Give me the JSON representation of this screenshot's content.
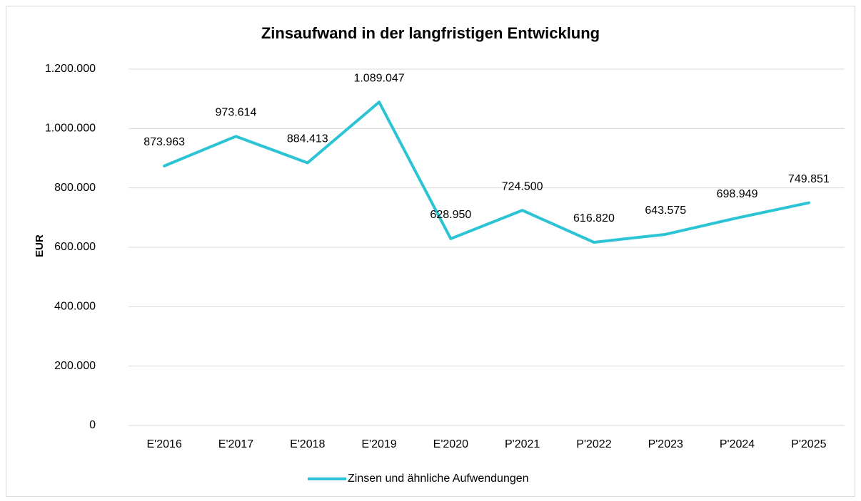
{
  "chart_data": {
    "type": "line",
    "title": "Zinsaufwand in der langfristigen Entwicklung",
    "y_label": "EUR",
    "categories": [
      "E'2016",
      "E'2017",
      "E'2018",
      "E'2019",
      "E'2020",
      "P'2021",
      "P'2022",
      "P'2023",
      "P'2024",
      "P'2025"
    ],
    "series": [
      {
        "name": "Zinsen und ähnliche Aufwendungen",
        "color": "#2cc3d5",
        "values": [
          873963,
          973614,
          884413,
          1089047,
          628950,
          724500,
          616820,
          643575,
          698949,
          749851
        ],
        "value_labels": [
          "873.963",
          "973.614",
          "884.413",
          "1.089.047",
          "628.950",
          "724.500",
          "616.820",
          "643.575",
          "698.949",
          "749.851"
        ]
      }
    ],
    "ylim": [
      0,
      1200000
    ],
    "yticks": [
      0,
      {
        "value": 200000,
        "label": "200.000"
      },
      {
        "value": 400000,
        "label": "400.000"
      },
      {
        "value": 600000,
        "label": "600.000"
      },
      {
        "value": 800000,
        "label": "800.000"
      },
      {
        "value": 1000000,
        "label": "1.000.000"
      },
      {
        "value": 1200000,
        "label": "1.200.000"
      }
    ],
    "grid": true,
    "legend": "bottom"
  }
}
